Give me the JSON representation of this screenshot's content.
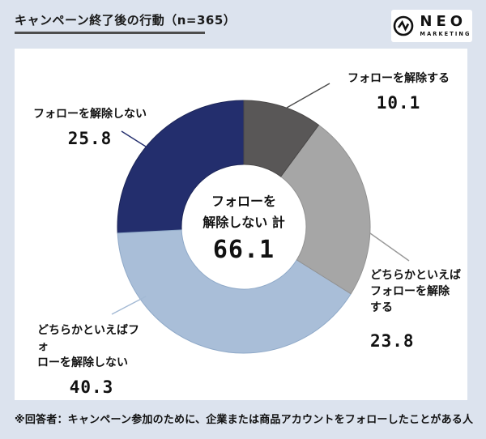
{
  "page": {
    "background": "#dce3ee",
    "panel_background": "#ffffff"
  },
  "header": {
    "title": "キャンペーン終了後の行動（n=365）",
    "logo": {
      "name": "NEO",
      "sub": "MARKETING"
    }
  },
  "chart_data": {
    "type": "pie",
    "subtype": "donut",
    "title": "キャンペーン終了後の行動（n=365）",
    "n": 365,
    "start_angle_deg": 0,
    "direction": "clockwise",
    "segments": [
      {
        "label": "フォローを解除する",
        "value": 10.1,
        "color": "#595757",
        "border": "#494747",
        "leader_color": "#4a4a4a"
      },
      {
        "label": "どちらかといえばフォローを解除する",
        "value": 23.8,
        "color": "#a6a6a6",
        "border": "#929292",
        "leader_color": "#999999"
      },
      {
        "label": "どちらかといえばフォローを解除しない",
        "value": 40.3,
        "color": "#a9bed8",
        "border": "#8fa9c8",
        "leader_color": "#a3b9d4"
      },
      {
        "label": "フォローを解除しない",
        "value": 25.8,
        "color": "#232e6d",
        "border": "#1c2557",
        "leader_color": "#232e6d"
      }
    ],
    "center_total": {
      "label": "フォローを解除しない 計",
      "value": 66.1
    },
    "legend_position": "callouts"
  },
  "callouts": {
    "top_right": {
      "line1": "フォローを解除する",
      "value": "10.1"
    },
    "top_left": {
      "line1": "フォローを解除しない",
      "value": "25.8"
    },
    "bottom_left": {
      "line1": "どちらかといえばフォ",
      "line2": "ローを解除しない",
      "value": "40.3"
    },
    "right": {
      "line1": "どちらかといえば",
      "line2": "フォローを解除",
      "line3": "する",
      "value": "23.8"
    }
  },
  "center": {
    "line1": "フォローを",
    "line2": "解除しない 計",
    "value": "66.1"
  },
  "footnote": "※回答者：キャンペーン参加のために、企業または商品アカウントをフォローしたことがある人"
}
